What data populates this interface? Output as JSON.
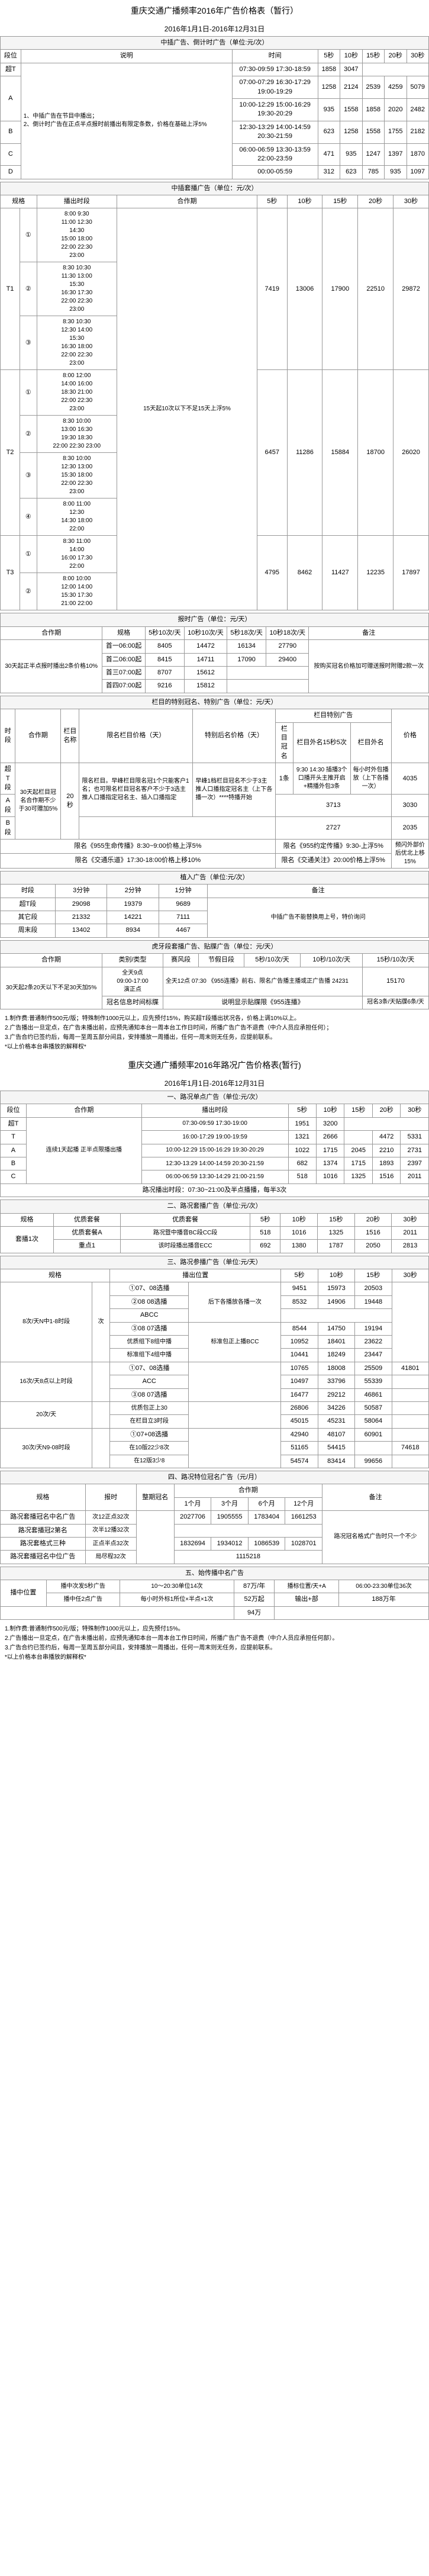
{
  "doc": {
    "main_title": "重庆交通广播频率2016年广告价格表（暂行）",
    "date_range": "2016年1月1日-2016年12月31日",
    "sec1_head": "中插广告、倒计时广告（单位:元/次）",
    "col_rank": "段位",
    "col_desc": "说明",
    "col_time": "时间",
    "col_5s": "5秒",
    "col_10s": "10秒",
    "col_15s": "15秒",
    "col_20s": "20秒",
    "col_30s": "30秒",
    "rank_st": "超T",
    "rank_a": "A",
    "rank_b": "B",
    "rank_c": "C",
    "rank_d": "D",
    "desc1": "1、中插广告在节目中播出；\n2、倒计时广告在正点半点报时前播出有限定条数，价格在基础上浮5%",
    "t1_time": "07:30-09:59 17:30-18:59",
    "t1_5": "1858",
    "t1_10": "3047",
    "t2_time": "07:00-07:29 16:30-17:29\n19:00-19:29",
    "t2_5": "1258",
    "t2_10": "2124",
    "t2_15": "2539",
    "t2_20": "4259",
    "t2_30": "5079",
    "t3_time": "10:00-12:29 15:00-16:29\n19:30-20:29",
    "t3_5": "935",
    "t3_10": "1558",
    "t3_15": "1858",
    "t3_20": "2020",
    "t3_30": "2482",
    "t4_time": "12:30-13:29 14:00-14:59\n20:30-21:59",
    "t4_5": "623",
    "t4_10": "1258",
    "t4_15": "1558",
    "t4_20": "1755",
    "t4_30": "2182",
    "t5_time": "06:00-06:59 13:30-13:59\n22:00-23:59",
    "t5_5": "471",
    "t5_10": "935",
    "t5_15": "1247",
    "t5_20": "1397",
    "t5_30": "1870",
    "t6_time": "00:00-05:59",
    "t6_5": "312",
    "t6_10": "623",
    "t6_15": "785",
    "t6_20": "935",
    "t6_30": "1097",
    "sec2_head": "中插套播广告（单位：元/次）",
    "col_spec": "规格",
    "col_bcast": "播出时段",
    "t1_label": "T1",
    "t2_label": "T2",
    "t3_label": "T3",
    "circle1": "①",
    "circle2": "②",
    "circle3": "③",
    "circle4": "④",
    "t1_1_times": "8:00 9:30\n11:00 12:30\n14:30\n15:00 18:00\n22:00 22:30\n23:00",
    "t1_2_times": "8:30 10:30\n11:30 13:00\n15:30\n16:30 17:30\n22:00 22:30\n23:00",
    "t1_2_5": "7419",
    "t1_2_10": "13006",
    "t1_2_15": "17900",
    "t1_2_20": "22510",
    "t1_2_30": "29872",
    "t1_3_times": "8:30 10:30\n12:30 14:00\n15:30\n16:30 18:00\n22:00 22:30\n23:00",
    "t2_1_times": "8:00 12:00\n14:00 16:00\n18:30 21:00\n22:00 22:30\n23:00",
    "t2_remark": "15天起10次以下不足15天上浮5%",
    "t2_2_times": "8:30 10:00\n13:00 16:30\n19:30 18:30\n22:00 22:30 23:00",
    "t2_3_5": "6457",
    "t2_3_10": "11286",
    "t2_3_15": "15884",
    "t2_3_20": "18700",
    "t2_3_30": "26020",
    "t2_3_times": "8:30 10:00\n12:30 13:00\n15:30 18:00\n22:00 22:30\n23:00",
    "t2_4_times": "8:00 11:00\n12:30\n14:30 18:00\n22:00",
    "t3_1_times": "8:30 11:00\n14:00\n16:00 17:30\n22:00",
    "t3_1_5": "4795",
    "t3_1_10": "8462",
    "t3_1_15": "11427",
    "t3_1_20": "12235",
    "t3_1_30": "17897",
    "t3_2_times": "8:00 10:00\n12:00 14:00\n15:30 17:30\n21:00 22:00",
    "sec3_head": "报时广告（单位：元/天）",
    "col_partner": "合作期",
    "col_spec2": "规格",
    "col_5s10": "5秒10次/天",
    "col_10s10": "10秒10次/天",
    "col_5s18": "5秒18次/天",
    "col_10s18": "10秒18次/天",
    "col_remark": "备注",
    "partner30": "30天起正半点报时播出2条价格10%",
    "bs_first06": "首一06:00起",
    "bs1_5s10": "8405",
    "bs1_10s10": "14472",
    "bs1_5s18": "16134",
    "bs1_10s18": "27790",
    "bs_second06": "首二06:00起",
    "bs2_5s10": "8415",
    "bs2_10s10": "14711",
    "bs2_5s18": "17090",
    "bs2_10s18": "29400",
    "bs_remark": "按购买冠名价格加可赠送报时附赠2款一次",
    "bs_third07": "首三07:00起",
    "bs3_5s10": "8707",
    "bs3_10s10": "15612",
    "bs_fourth07": "首四07:00起",
    "bs4_5s10": "9216",
    "bs4_10s10": "15812",
    "sec3b_title": "栏目的特别冠名、特别广告（单位：元/天）",
    "col_timeslot": "时段",
    "col_period": "合作期",
    "col_prog": "栏目名称",
    "col_sponsor": "限名栏目价格（天）",
    "col_special": "特别后名价格（天）",
    "col_title1": "栏目特别广告",
    "col_title2": "栏目冠名",
    "col_title3": "栏目外名15秒5次",
    "col_price": "价格",
    "slot_st": "超T段",
    "slot_a": "A段",
    "slot_b": "B段",
    "period_text": "30天起栏目冠名合作期不少于30可赠加5%",
    "period_20s": "20秒",
    "st_prog1": "限名栏目。早峰栏目限名冠1个只能客户1名；也可限名栏目冠名客户不少于3选主推人口播指定冠名主、插入口播指定",
    "st_prog2": "早峰1档栏目冠名不少于3主推人口播指定冠名主（上下各播一次）****特播开始",
    "st_r1_1": "1条",
    "st_r1_2": "9:30 14:30 插播3个口播开头主推开启+精播外包3条",
    "st_r1_3": "每小时外包播放（上下各播一次）",
    "st_price1": "4035",
    "st_price2": "3713",
    "st_price3": "3030",
    "st_price4": "2727",
    "st_price5": "2035",
    "row_955": "限名《955生命传播》8:30~9:00价格上浮5%",
    "row_955_2": "限名《955约定传播》9:30-上浮5%",
    "row_traffic": "限名《交通乐道》17:30-18:00价格上移10%",
    "row_focus": "限名《交通关注》20:00价格上浮5%",
    "row_downshift": "频闪外部价后优北上移15%",
    "sec4_head": "植入广告（单位:元/次）",
    "col_duration": "时段",
    "col_3min": "3分钟",
    "col_2min": "2分钟",
    "col_1min": "1分钟",
    "row_stt": "超T段",
    "stt_3": "29098",
    "stt_2": "19379",
    "stt_1": "9689",
    "stt_remark": "中插广告不能替换用上号，特价询问",
    "row_other": "其它段",
    "oth_3": "21332",
    "oth_2": "14221",
    "oth_1": "7111",
    "row_weekend": "周末段",
    "wk_3": "13402",
    "wk_2": "8934",
    "wk_1": "4467",
    "sec5_head": "虎牙段套播广告、贴牒广告（单位：元/天）",
    "col_vhtype": "类别/类型",
    "col_season": "赛风段",
    "col_holiday": "节假日段",
    "col_5s10d": "5秒/10次/天",
    "col_10s10d": "10秒/10次/天",
    "col_15s10d": "15秒/10次/天",
    "row_vh1": "30天起2条20天以下不足30天加5%",
    "vh_prog1": "全天9点\n09:00-17:00\n演正点",
    "vh_prog2": "全天12点\n07:30 《955连播》前右、限名广告播主播或正广告播 24231",
    "vh_price": "15170",
    "row_vh2": "冠名信息时间标牒",
    "vh_remark": "冠名3条/天贴牒6条/天",
    "sec5_note": "说明显示贴牒限《955连播》",
    "notes1": "1.制作费:普通制作500元/版；特殊制作1000元以上，应先预付15%，购买超T段播出状况各，价格上调10%以上。\n2.广告播出一旦定点，在广告未播出前，应预先通知本台一周本台工作日时间，所播广告广告不退费（中介人员应承担任何）；\n3.广告合约已签约后，每周一至周五部分间且，安排播放一周播出，任何一周末则无任务，应提前联系。\n*以上价格本台串播放的解释权*",
    "doc2_title": "重庆交通广播频率2016年路况广告价格表(暂行)",
    "doc2_date": "2016年1月1日-2016年12月31日",
    "sec6_head": "一、路况单点广告（单位:元/次）",
    "col_rank2": "段位",
    "col_bcast2": "播出时段",
    "col_partner2": "合作期",
    "d2_st_time": "07:30-09:59 17:30-19:00",
    "d2_st_5": "1951",
    "d2_st_10": "3200",
    "d2_t_time": "16:00-17:29 19:00-19:59",
    "d2_t_5": "1321",
    "d2_t_10": "2666",
    "d2_t_15": "4472",
    "d2_t_30": "5331",
    "d2_a_time": "10:00-12:29 15:00-16:29 19:30-20:29",
    "d2_a_remark": "连续1天起播 正半点限播出播",
    "d2_a_5": "1022",
    "d2_a_10": "1715",
    "d2_a_15": "2045",
    "d2_a_20": "2210",
    "d2_a_30": "2731",
    "d2_b_time": "12:30-13:29 14:00-14:59 20:30-21:59",
    "d2_b_5": "682",
    "d2_b_10": "1374",
    "d2_b_15": "1715",
    "d2_b_20": "1893",
    "d2_b_30": "2397",
    "d2_c_time": "06:00-06:59 13:30-14:29 21:00-21:59",
    "d2_c_5": "518",
    "d2_c_10": "1016",
    "d2_c_15": "1325",
    "d2_c_20": "1516",
    "d2_c_30": "2011",
    "sec7_head": "路况播出时段：07:30~21:00及半点播播，每半3次",
    "sec7_row": "二、路况套播广告（单位:元/次）",
    "col_spec3": "规格",
    "col_prog2": "优质套餐",
    "d2s1_desc": "优质套餐A",
    "d2s1_time": "路况暨中播音BC段CC段",
    "d2s1_5": "518",
    "d2s1_10": "1016",
    "d2s1_15": "1325",
    "d2s1_20": "1516",
    "d2s1_30": "2011",
    "d2s2_desc": "重点1",
    "d2s2_time": "该时段播出播音ECC",
    "d2s2_5": "692",
    "d2s2_10": "1380",
    "d2s2_15": "1787",
    "d2s2_20": "2050",
    "d2s2_30": "2813",
    "sec8_head": "三、路况参播广告（单位:元/天）",
    "col_spec4": "规格",
    "col_bcast3": "播出位置",
    "d3_spec1": "8次/天N中1-8时段",
    "d3_t1": "①07、08选播",
    "d3_t1_time": "后下各播放各播一次",
    "d3_t1_5": "9451",
    "d3_t1_10": "15973",
    "d3_t1_15": "20503",
    "d3_t2": "②08 08选播",
    "d3_t2_5": "8532",
    "d3_t2_10": "14906",
    "d3_t2_15": "19448",
    "d3_abcc": "ABCC",
    "d3_t3": "③08 07选播",
    "d3_t3_5": "8544",
    "d3_t3_10": "14750",
    "d3_t3_15": "19194",
    "d3_basic": "标准包正上播BCC",
    "d3_spec2": "优质段包2一3时 每组播段",
    "d3_t4": "优质组下8组中播",
    "d3_t4_5": "10952",
    "d3_t4_10": "18401",
    "d3_t4_15": "23622",
    "d3_t5": "标准组下4组中播",
    "d3_t5_5": "10441",
    "d3_t5_10": "18249",
    "d3_t5_15": "23447",
    "d3_t5b_5": "10765",
    "d3_t5b_10": "18008",
    "d3_t5b_15": "25509",
    "d3_t5b_30": "41801",
    "d3_spec3": "16次/天8点以上时段",
    "d3_t6": "①07、08选播",
    "d3_t6_5": "10497",
    "d3_t6_10": "33796",
    "d3_t6_15": "55339",
    "d3_acc": "ACC",
    "d3_t7": "③08 07选播",
    "d3_t7_5": "16477",
    "d3_t7_10": "29212",
    "d3_t7_15": "46861",
    "d3_spec4": "20次/天",
    "d3_t8": "优质包正上30",
    "d3_t8_5": "26806",
    "d3_t8_10": "34226",
    "d3_t8_15": "50587",
    "d3_t9": "在栏目立3时段",
    "d3_t9_5": "45015",
    "d3_t9_10": "45231",
    "d3_t9_15": "58064",
    "d3_spec5": "30次/天N9-08时段",
    "d3_t10": "①07+08选播",
    "d3_t10_5": "42940",
    "d3_t10_10": "48107",
    "d3_t10_15": "60901",
    "d3_t11": "在10版22少8次",
    "d3_t11_5": "51165",
    "d3_t11_10": "54415",
    "d3_t10_30": "74618",
    "d3_t12": "在12版3少8",
    "d3_t12_5": "54574",
    "d3_t12_10": "83414",
    "d3_t12_15": "99656",
    "sec9_head": "四、路况特位冠名广告（元/月）",
    "col_spec5": "规格",
    "col_baotime": "报时",
    "col_per": "整期冠名",
    "d4_c1": "1个月",
    "d4_c2": "3个月",
    "d4_c3": "6个月",
    "d4_c4": "12个月",
    "d4_remark": "备注",
    "d4_r1": "路况套播冠名中名广告",
    "d4_r1_desc": "次12正点32次",
    "d4_r1_1": "2027706",
    "d4_r1_2": "1905555",
    "d4_r1_3": "1783404",
    "d4_r1_4": "1661253",
    "d4_rem": "路况冠名格式广告时只一个不少",
    "d4_r2": "路况套播冠2第名",
    "d4_r2_desc": "次半12播32次",
    "d4_r3": "路况套格式三种",
    "d4_r3_desc": "正点半点32次",
    "d4_r3_1": "1832694",
    "d4_r3_2": "1934012",
    "d4_r3_3": "1086539",
    "d4_r3_4": "1028701",
    "d4_r4": "路况套播冠名中位广告",
    "d4_r4_desc": "局尽程32次",
    "d4_r4_1": "1115218",
    "sec10_head": "五、始传播中名广告",
    "d5_r1": "播中位置",
    "d5_label1": "播中次发5秒广告",
    "d5_label2": "10～20:30单位14次",
    "d5_price1": "87万/年",
    "d5_label3": "播标位置/天+A",
    "d5_label4": "输出+部",
    "d5_price2": "06:00-23:30单位36次",
    "d5_r2": "播中任2点广告",
    "d5_price3": "每小时外标1所位×半点×1次",
    "d5_price4": "52万起",
    "d5_total": "94万",
    "d5_price5": "188万年",
    "notes2": "1.制作费:普通制作500元/版；特殊制作1000元以上，应先预付15%。\n2.广告播出一旦定点，在广告未播出前，应预先通知本台一周本台工作日时间，所播广告广告不退费（中介人员应承担任何部）。\n3.广告合约已签约后，每周一至周五部分间且，安排播放一周播出，任何一周末则无任务，应提前联系。\n*以上价格本台串播放的解释权*"
  },
  "style": {
    "border_color": "#999999",
    "bg_color": "#ffffff",
    "section_bg": "#f5f5f5",
    "font_size_base": 11,
    "font_size_title": 14
  }
}
